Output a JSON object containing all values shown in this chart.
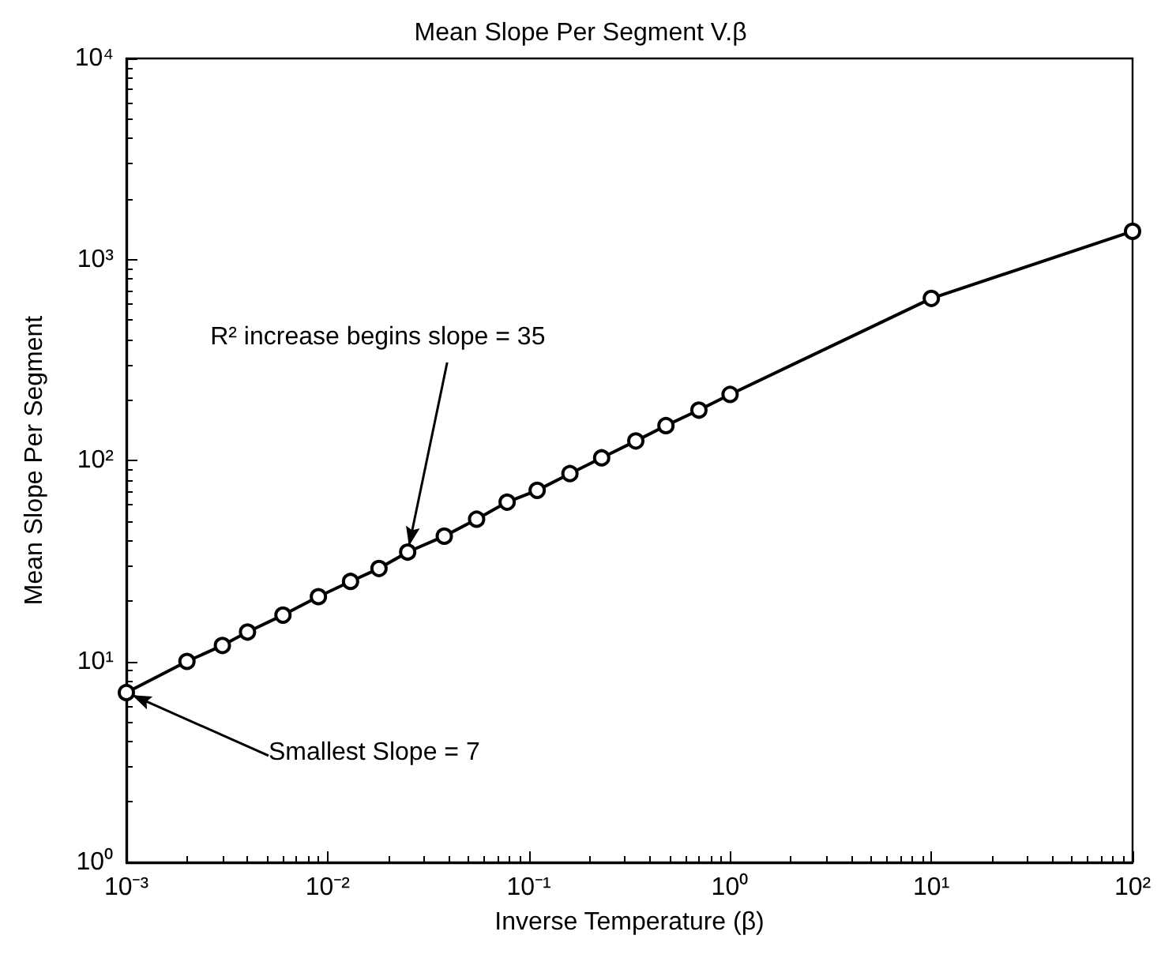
{
  "chart_data": {
    "type": "line",
    "title": "Mean Slope Per Segment V.β",
    "xlabel": "Inverse Temperature (β)",
    "ylabel": "Mean Slope Per Segment",
    "x": [
      0.001,
      0.002,
      0.003,
      0.004,
      0.006,
      0.009,
      0.013,
      0.018,
      0.025,
      0.038,
      0.055,
      0.078,
      0.11,
      0.16,
      0.23,
      0.34,
      0.48,
      0.7,
      1,
      10,
      100
    ],
    "series": [
      {
        "color": "#000000",
        "values": [
          7,
          10,
          12,
          14,
          17,
          21,
          25,
          29,
          35,
          42,
          51,
          62,
          71,
          86,
          103,
          125,
          149,
          178,
          213,
          640,
          1380
        ]
      }
    ],
    "log": "xy",
    "marker": "circle",
    "line_style": "solid",
    "xlim": [
      0.001,
      100
    ],
    "ylim": [
      1,
      10000
    ],
    "xticks": [
      {
        "value": 0.001,
        "label": "10⁻³"
      },
      {
        "value": 0.01,
        "label": "10⁻²"
      },
      {
        "value": 0.1,
        "label": "10⁻¹"
      },
      {
        "value": 1,
        "label": "10⁰"
      },
      {
        "value": 10,
        "label": "10¹"
      },
      {
        "value": 100,
        "label": "10²"
      }
    ],
    "yticks": [
      {
        "value": 1,
        "label": "10⁰"
      },
      {
        "value": 10,
        "label": "10¹"
      },
      {
        "value": 100,
        "label": "10²"
      },
      {
        "value": 1000,
        "label": "10³"
      },
      {
        "value": 10000,
        "label": "10⁴"
      }
    ],
    "annotations": [
      {
        "text": "R² increase begins slope = 35",
        "x": 0.025,
        "y": 35
      },
      {
        "text": "Smallest Slope = 7",
        "x": 0.001,
        "y": 7
      }
    ]
  }
}
